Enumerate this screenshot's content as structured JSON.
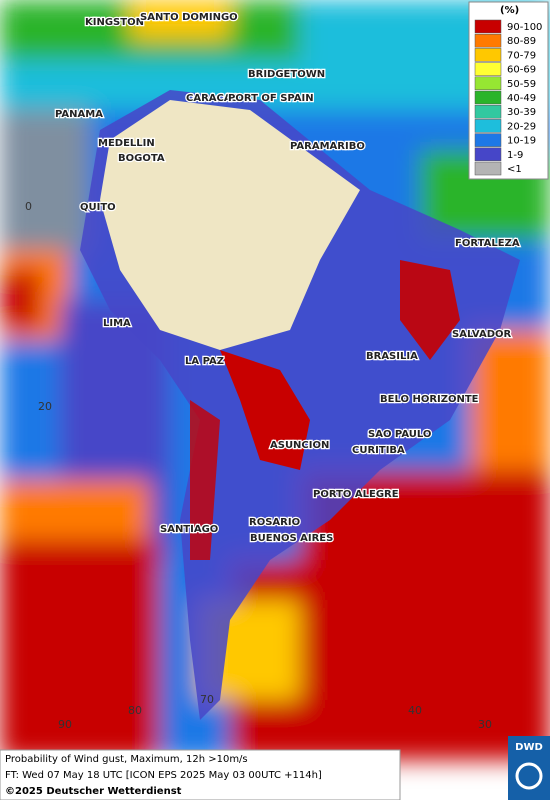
{
  "map": {
    "cities": [
      "KINGSTON",
      "SANTO DOMINGO",
      "BRIDGETOWN",
      "PANAMA",
      "CARACAS",
      "PORT OF SPAIN",
      "MEDELLIN",
      "BOGOTA",
      "PARAMARIBO",
      "QUITO",
      "FORTALEZA",
      "LIMA",
      "SALVADOR",
      "LA PAZ",
      "BRASILIA",
      "BELO HORIZONTE",
      "SAO PAULO",
      "ASUNCION",
      "CURITIBA",
      "PORTO ALEGRE",
      "SANTIAGO",
      "ROSARIO",
      "BUENOS AIRES"
    ],
    "grid_labels": [
      "0",
      "20",
      "90",
      "80",
      "70",
      "40",
      "30"
    ]
  },
  "legend": {
    "title": "(%)",
    "items": [
      {
        "label": "90-100",
        "color": "#c80000"
      },
      {
        "label": "80-89",
        "color": "#ff7a00"
      },
      {
        "label": "70-79",
        "color": "#ffc800"
      },
      {
        "label": "60-69",
        "color": "#ffff33"
      },
      {
        "label": "50-59",
        "color": "#96e632"
      },
      {
        "label": "40-49",
        "color": "#2ab42a"
      },
      {
        "label": "30-39",
        "color": "#32c8a0"
      },
      {
        "label": "20-29",
        "color": "#1ebedc"
      },
      {
        "label": "10-19",
        "color": "#1e78e6"
      },
      {
        "label": "1-9",
        "color": "#4646c8"
      },
      {
        "label": "<1",
        "color": "#b4b4b4"
      }
    ]
  },
  "footer": {
    "line1": "Probability of Wind gust, Maximum, 12h >10m/s",
    "line2": "FT: Wed 07 May 18 UTC [ICON EPS 2025 May 03 00UTC +114h]",
    "copyright": "©2025 Deutscher Wetterdienst"
  },
  "logo": "DWD"
}
